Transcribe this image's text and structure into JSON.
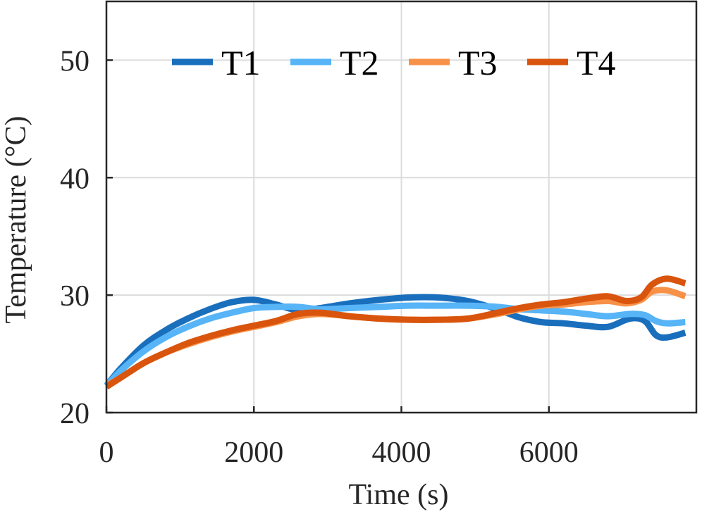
{
  "chart_data": {
    "type": "line",
    "xlabel": "Time (s)",
    "ylabel": "Temperature (°C)",
    "xlim": [
      0,
      8000
    ],
    "ylim": [
      20,
      55
    ],
    "xticks": [
      0,
      2000,
      4000,
      6000
    ],
    "yticks": [
      20,
      30,
      40,
      50
    ],
    "grid": true,
    "legend_position": "top, horizontal",
    "series": [
      {
        "name": "T1",
        "color": "#1a6fbd",
        "points": [
          [
            0,
            22.3
          ],
          [
            200,
            23.8
          ],
          [
            500,
            25.7
          ],
          [
            800,
            27.0
          ],
          [
            1100,
            28.0
          ],
          [
            1400,
            28.8
          ],
          [
            1700,
            29.4
          ],
          [
            2000,
            29.6
          ],
          [
            2300,
            29.2
          ],
          [
            2600,
            28.7
          ],
          [
            2900,
            28.9
          ],
          [
            3300,
            29.3
          ],
          [
            3700,
            29.6
          ],
          [
            4100,
            29.8
          ],
          [
            4500,
            29.8
          ],
          [
            4900,
            29.5
          ],
          [
            5300,
            28.8
          ],
          [
            5600,
            28.1
          ],
          [
            5900,
            27.7
          ],
          [
            6200,
            27.6
          ],
          [
            6500,
            27.4
          ],
          [
            6800,
            27.3
          ],
          [
            7100,
            28.0
          ],
          [
            7300,
            27.8
          ],
          [
            7450,
            26.6
          ],
          [
            7600,
            26.4
          ],
          [
            7850,
            26.8
          ]
        ]
      },
      {
        "name": "T2",
        "color": "#56b4f7",
        "points": [
          [
            0,
            22.3
          ],
          [
            200,
            23.6
          ],
          [
            500,
            25.2
          ],
          [
            800,
            26.4
          ],
          [
            1100,
            27.3
          ],
          [
            1400,
            28.0
          ],
          [
            1700,
            28.5
          ],
          [
            2000,
            28.9
          ],
          [
            2300,
            29.0
          ],
          [
            2600,
            29.0
          ],
          [
            2900,
            28.8
          ],
          [
            3300,
            28.9
          ],
          [
            3700,
            29.0
          ],
          [
            4100,
            29.1
          ],
          [
            4500,
            29.1
          ],
          [
            4900,
            29.1
          ],
          [
            5300,
            29.0
          ],
          [
            5600,
            28.8
          ],
          [
            5900,
            28.7
          ],
          [
            6200,
            28.6
          ],
          [
            6500,
            28.4
          ],
          [
            6800,
            28.2
          ],
          [
            7100,
            28.4
          ],
          [
            7300,
            28.3
          ],
          [
            7450,
            27.8
          ],
          [
            7600,
            27.6
          ],
          [
            7850,
            27.7
          ]
        ]
      },
      {
        "name": "T3",
        "color": "#f89148",
        "points": [
          [
            0,
            22.3
          ],
          [
            200,
            23.0
          ],
          [
            500,
            24.2
          ],
          [
            800,
            25.1
          ],
          [
            1100,
            25.8
          ],
          [
            1400,
            26.4
          ],
          [
            1700,
            26.9
          ],
          [
            2000,
            27.3
          ],
          [
            2300,
            27.7
          ],
          [
            2600,
            28.2
          ],
          [
            2900,
            28.4
          ],
          [
            3300,
            28.2
          ],
          [
            3700,
            28.0
          ],
          [
            4100,
            27.9
          ],
          [
            4500,
            27.9
          ],
          [
            4900,
            28.0
          ],
          [
            5300,
            28.4
          ],
          [
            5600,
            28.8
          ],
          [
            5900,
            29.1
          ],
          [
            6200,
            29.2
          ],
          [
            6500,
            29.4
          ],
          [
            6800,
            29.5
          ],
          [
            7050,
            29.3
          ],
          [
            7250,
            29.6
          ],
          [
            7400,
            30.3
          ],
          [
            7600,
            30.4
          ],
          [
            7850,
            29.9
          ]
        ]
      },
      {
        "name": "T4",
        "color": "#d9540c",
        "points": [
          [
            0,
            22.2
          ],
          [
            200,
            23.0
          ],
          [
            500,
            24.2
          ],
          [
            800,
            25.1
          ],
          [
            1100,
            25.9
          ],
          [
            1400,
            26.5
          ],
          [
            1700,
            27.0
          ],
          [
            2000,
            27.4
          ],
          [
            2300,
            27.8
          ],
          [
            2600,
            28.4
          ],
          [
            2900,
            28.5
          ],
          [
            3300,
            28.2
          ],
          [
            3700,
            28.0
          ],
          [
            4100,
            27.9
          ],
          [
            4500,
            27.9
          ],
          [
            4900,
            28.0
          ],
          [
            5300,
            28.5
          ],
          [
            5600,
            28.9
          ],
          [
            5900,
            29.2
          ],
          [
            6200,
            29.4
          ],
          [
            6500,
            29.7
          ],
          [
            6800,
            29.9
          ],
          [
            7050,
            29.5
          ],
          [
            7250,
            29.8
          ],
          [
            7400,
            30.9
          ],
          [
            7600,
            31.4
          ],
          [
            7850,
            31.0
          ]
        ]
      }
    ]
  }
}
